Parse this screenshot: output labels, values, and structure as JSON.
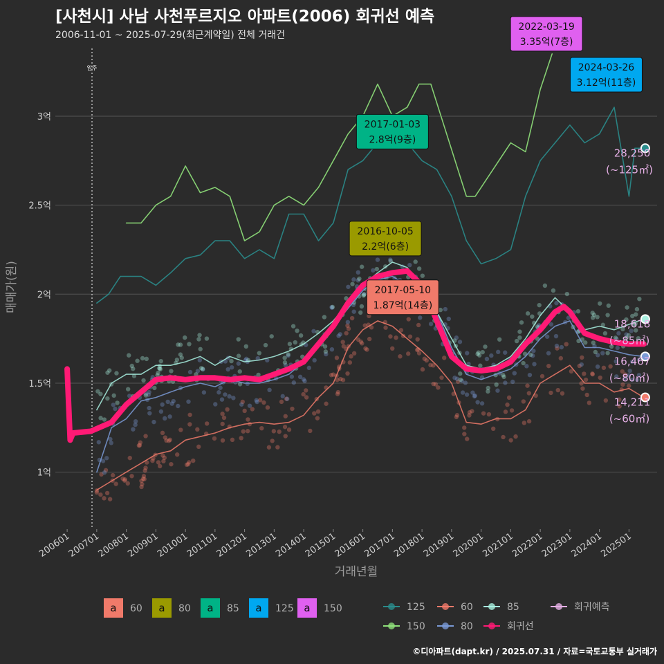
{
  "title": "[사천시] 사남 사천푸르지오 아파트(2006) 회귀선 예측",
  "subtitle": "2006-11-01 ~ 2025-07-29(최근계약일) 전체 거래건",
  "caption": "©디아파트(dapt.kr) / 2025.07.31 / 자료=국토교통부 실거래가",
  "chart_data": {
    "type": "line",
    "xlabel": "거래년월",
    "ylabel": "매매가(원)",
    "x_ticks": [
      "200601",
      "200701",
      "200801",
      "200901",
      "201001",
      "201101",
      "201201",
      "201301",
      "201401",
      "201501",
      "201601",
      "201701",
      "201801",
      "201901",
      "202001",
      "202101",
      "202201",
      "202301",
      "202401",
      "202501"
    ],
    "y_ticks": [
      {
        "value": 1.0,
        "label": "1억"
      },
      {
        "value": 1.5,
        "label": "1.5억"
      },
      {
        "value": 2.0,
        "label": "2억"
      },
      {
        "value": 2.5,
        "label": "2.5억"
      },
      {
        "value": 3.0,
        "label": "3억"
      }
    ],
    "ylim": [
      0.68,
      3.4
    ],
    "xlim": [
      2005.6,
      2025.95
    ],
    "vline": {
      "x": 2006.84,
      "label": "입주"
    },
    "series": [
      {
        "name": "125",
        "color": "#2a8c8c",
        "values": [
          [
            2007.0,
            1.95
          ],
          [
            2007.4,
            2.0
          ],
          [
            2007.8,
            2.1
          ],
          [
            2008.5,
            2.1
          ],
          [
            2009.0,
            2.05
          ],
          [
            2009.5,
            2.12
          ],
          [
            2010.0,
            2.2
          ],
          [
            2010.5,
            2.22
          ],
          [
            2011.0,
            2.3
          ],
          [
            2011.5,
            2.3
          ],
          [
            2012.0,
            2.2
          ],
          [
            2012.5,
            2.25
          ],
          [
            2013.0,
            2.2
          ],
          [
            2013.5,
            2.45
          ],
          [
            2014.0,
            2.45
          ],
          [
            2014.5,
            2.3
          ],
          [
            2015.0,
            2.4
          ],
          [
            2015.5,
            2.7
          ],
          [
            2016.0,
            2.75
          ],
          [
            2016.5,
            2.85
          ],
          [
            2017.0,
            2.95
          ],
          [
            2017.5,
            2.85
          ],
          [
            2018.0,
            2.75
          ],
          [
            2018.5,
            2.7
          ],
          [
            2019.0,
            2.55
          ],
          [
            2019.5,
            2.3
          ],
          [
            2020.0,
            2.17
          ],
          [
            2020.5,
            2.2
          ],
          [
            2021.0,
            2.25
          ],
          [
            2021.5,
            2.55
          ],
          [
            2022.0,
            2.75
          ],
          [
            2022.5,
            2.85
          ],
          [
            2023.0,
            2.95
          ],
          [
            2023.5,
            2.85
          ],
          [
            2024.0,
            2.9
          ],
          [
            2024.5,
            3.05
          ],
          [
            2025.0,
            2.55
          ],
          [
            2025.2,
            2.82
          ],
          [
            2025.5,
            2.82
          ]
        ]
      },
      {
        "name": "150",
        "color": "#8fe07a",
        "values": [
          [
            2008.0,
            2.4
          ],
          [
            2008.5,
            2.4
          ],
          [
            2009.0,
            2.5
          ],
          [
            2009.5,
            2.55
          ],
          [
            2010.0,
            2.72
          ],
          [
            2010.5,
            2.57
          ],
          [
            2011.0,
            2.6
          ],
          [
            2011.5,
            2.55
          ],
          [
            2012.0,
            2.3
          ],
          [
            2012.5,
            2.35
          ],
          [
            2013.0,
            2.5
          ],
          [
            2013.5,
            2.55
          ],
          [
            2014.0,
            2.5
          ],
          [
            2014.5,
            2.6
          ],
          [
            2015.0,
            2.75
          ],
          [
            2015.5,
            2.9
          ],
          [
            2016.0,
            3.0
          ],
          [
            2016.5,
            3.18
          ],
          [
            2017.0,
            3.0
          ],
          [
            2017.5,
            3.05
          ],
          [
            2017.9,
            3.18
          ],
          [
            2018.3,
            3.18
          ],
          [
            2019.5,
            2.55
          ],
          [
            2019.8,
            2.55
          ],
          [
            2021.0,
            2.85
          ],
          [
            2021.5,
            2.8
          ],
          [
            2022.0,
            3.15
          ],
          [
            2022.4,
            3.35
          ]
        ]
      },
      {
        "name": "60",
        "color": "#f07a6a",
        "values": [
          [
            2007.0,
            0.9
          ],
          [
            2007.5,
            0.95
          ],
          [
            2008.0,
            1.0
          ],
          [
            2008.5,
            1.05
          ],
          [
            2009.0,
            1.1
          ],
          [
            2009.5,
            1.12
          ],
          [
            2010.0,
            1.18
          ],
          [
            2010.5,
            1.2
          ],
          [
            2011.0,
            1.22
          ],
          [
            2011.5,
            1.25
          ],
          [
            2012.0,
            1.27
          ],
          [
            2012.5,
            1.28
          ],
          [
            2013.0,
            1.27
          ],
          [
            2013.5,
            1.28
          ],
          [
            2014.0,
            1.32
          ],
          [
            2014.5,
            1.42
          ],
          [
            2015.0,
            1.5
          ],
          [
            2015.5,
            1.7
          ],
          [
            2016.0,
            1.8
          ],
          [
            2016.5,
            1.85
          ],
          [
            2017.0,
            1.82
          ],
          [
            2017.5,
            1.75
          ],
          [
            2018.0,
            1.68
          ],
          [
            2018.5,
            1.6
          ],
          [
            2019.0,
            1.5
          ],
          [
            2019.5,
            1.28
          ],
          [
            2020.0,
            1.27
          ],
          [
            2020.5,
            1.3
          ],
          [
            2021.0,
            1.3
          ],
          [
            2021.5,
            1.35
          ],
          [
            2022.0,
            1.5
          ],
          [
            2022.5,
            1.55
          ],
          [
            2023.0,
            1.6
          ],
          [
            2023.5,
            1.5
          ],
          [
            2024.0,
            1.5
          ],
          [
            2024.5,
            1.45
          ],
          [
            2025.0,
            1.47
          ],
          [
            2025.5,
            1.42
          ]
        ]
      },
      {
        "name": "80",
        "color": "#7a9ad6",
        "values": [
          [
            2007.0,
            1.0
          ],
          [
            2007.5,
            1.25
          ],
          [
            2008.0,
            1.3
          ],
          [
            2008.5,
            1.4
          ],
          [
            2009.0,
            1.42
          ],
          [
            2009.5,
            1.45
          ],
          [
            2010.0,
            1.48
          ],
          [
            2010.5,
            1.5
          ],
          [
            2011.0,
            1.48
          ],
          [
            2011.5,
            1.52
          ],
          [
            2012.0,
            1.5
          ],
          [
            2012.5,
            1.5
          ],
          [
            2013.0,
            1.52
          ],
          [
            2013.5,
            1.55
          ],
          [
            2014.0,
            1.62
          ],
          [
            2014.5,
            1.72
          ],
          [
            2015.0,
            1.82
          ],
          [
            2015.5,
            1.92
          ],
          [
            2016.0,
            2.02
          ],
          [
            2016.5,
            2.08
          ],
          [
            2017.0,
            2.1
          ],
          [
            2017.5,
            2.05
          ],
          [
            2018.0,
            2.0
          ],
          [
            2018.5,
            1.9
          ],
          [
            2019.0,
            1.7
          ],
          [
            2019.5,
            1.55
          ],
          [
            2020.0,
            1.52
          ],
          [
            2020.5,
            1.55
          ],
          [
            2021.0,
            1.58
          ],
          [
            2021.5,
            1.65
          ],
          [
            2022.0,
            1.75
          ],
          [
            2022.5,
            1.82
          ],
          [
            2023.0,
            1.85
          ],
          [
            2023.5,
            1.7
          ],
          [
            2024.0,
            1.7
          ],
          [
            2024.5,
            1.68
          ],
          [
            2025.0,
            1.66
          ],
          [
            2025.5,
            1.65
          ]
        ]
      },
      {
        "name": "85",
        "color": "#a8f0e0",
        "values": [
          [
            2007.0,
            1.35
          ],
          [
            2007.5,
            1.5
          ],
          [
            2008.0,
            1.55
          ],
          [
            2008.5,
            1.55
          ],
          [
            2009.0,
            1.6
          ],
          [
            2009.5,
            1.6
          ],
          [
            2010.0,
            1.62
          ],
          [
            2010.5,
            1.65
          ],
          [
            2011.0,
            1.6
          ],
          [
            2011.5,
            1.65
          ],
          [
            2012.0,
            1.62
          ],
          [
            2012.5,
            1.63
          ],
          [
            2013.0,
            1.65
          ],
          [
            2013.5,
            1.68
          ],
          [
            2014.0,
            1.72
          ],
          [
            2014.5,
            1.78
          ],
          [
            2015.0,
            1.85
          ],
          [
            2015.5,
            1.95
          ],
          [
            2016.0,
            2.05
          ],
          [
            2016.5,
            2.12
          ],
          [
            2017.0,
            2.18
          ],
          [
            2017.5,
            2.15
          ],
          [
            2018.0,
            2.05
          ],
          [
            2018.5,
            1.9
          ],
          [
            2019.0,
            1.75
          ],
          [
            2019.5,
            1.6
          ],
          [
            2020.0,
            1.58
          ],
          [
            2020.5,
            1.6
          ],
          [
            2021.0,
            1.65
          ],
          [
            2021.5,
            1.75
          ],
          [
            2022.0,
            1.88
          ],
          [
            2022.5,
            1.98
          ],
          [
            2023.0,
            1.9
          ],
          [
            2023.5,
            1.8
          ],
          [
            2024.0,
            1.82
          ],
          [
            2024.5,
            1.8
          ],
          [
            2025.0,
            1.83
          ],
          [
            2025.5,
            1.86
          ]
        ]
      },
      {
        "name": "회귀선",
        "color": "#ff1a75",
        "values": [
          [
            2006.0,
            1.58
          ],
          [
            2006.1,
            1.18
          ],
          [
            2006.2,
            1.22
          ],
          [
            2006.8,
            1.23
          ],
          [
            2007.5,
            1.28
          ],
          [
            2008.0,
            1.38
          ],
          [
            2008.5,
            1.45
          ],
          [
            2009.0,
            1.52
          ],
          [
            2009.5,
            1.53
          ],
          [
            2010.0,
            1.52
          ],
          [
            2010.5,
            1.53
          ],
          [
            2011.0,
            1.53
          ],
          [
            2011.5,
            1.52
          ],
          [
            2012.0,
            1.53
          ],
          [
            2012.5,
            1.52
          ],
          [
            2013.0,
            1.55
          ],
          [
            2013.5,
            1.58
          ],
          [
            2014.0,
            1.62
          ],
          [
            2014.5,
            1.72
          ],
          [
            2015.0,
            1.82
          ],
          [
            2015.5,
            1.95
          ],
          [
            2016.0,
            2.05
          ],
          [
            2016.5,
            2.1
          ],
          [
            2017.0,
            2.12
          ],
          [
            2017.5,
            2.13
          ],
          [
            2018.0,
            2.05
          ],
          [
            2018.5,
            1.85
          ],
          [
            2019.0,
            1.65
          ],
          [
            2019.5,
            1.58
          ],
          [
            2020.0,
            1.57
          ],
          [
            2020.5,
            1.58
          ],
          [
            2021.0,
            1.62
          ],
          [
            2021.5,
            1.72
          ],
          [
            2022.0,
            1.8
          ],
          [
            2022.5,
            1.9
          ],
          [
            2022.8,
            1.93
          ],
          [
            2023.0,
            1.9
          ],
          [
            2023.5,
            1.78
          ],
          [
            2024.0,
            1.75
          ],
          [
            2024.5,
            1.73
          ],
          [
            2025.0,
            1.72
          ],
          [
            2025.5,
            1.72
          ]
        ]
      }
    ],
    "legend_fill": [
      {
        "label": "60",
        "color": "#f07a6a"
      },
      {
        "label": "80",
        "color": "#9a9a00"
      },
      {
        "label": "85",
        "color": "#00b386"
      },
      {
        "label": "125",
        "color": "#00a8f0"
      },
      {
        "label": "150",
        "color": "#e060f0"
      }
    ],
    "legend_line": [
      {
        "label": "125",
        "color": "#2a8c8c"
      },
      {
        "label": "60",
        "color": "#f07a6a"
      },
      {
        "label": "85",
        "color": "#a8f0e0"
      },
      {
        "label": "회귀예측",
        "color": "#e6b0e6"
      },
      {
        "label": "150",
        "color": "#8fe07a"
      },
      {
        "label": "80",
        "color": "#7a9ad6"
      },
      {
        "label": "회귀선",
        "color": "#ff1a75"
      }
    ],
    "annotations": [
      {
        "date": "2022-03-19",
        "price": "3.35억(7층)",
        "x": 2022.21,
        "y": 3.35,
        "color": "#e060f0"
      },
      {
        "date": "2024-03-26",
        "price": "3.12억(11층)",
        "x": 2024.23,
        "y": 3.12,
        "color": "#00a8f0"
      },
      {
        "date": "2017-01-03",
        "price": "2.8억(9층)",
        "x": 2017.0,
        "y": 2.8,
        "color": "#00b386"
      },
      {
        "date": "2016-10-05",
        "price": "2.2억(6층)",
        "x": 2016.76,
        "y": 2.2,
        "color": "#9a9a00"
      },
      {
        "date": "2017-05-10",
        "price": "1.87억(14층)",
        "x": 2017.35,
        "y": 1.87,
        "color": "#f07a6a"
      }
    ],
    "end_labels": [
      {
        "value": "28,250",
        "area": "(~125㎡)",
        "y": 2.82,
        "color": "#2a8c8c"
      },
      {
        "value": "18,618",
        "area": "(~85㎡)",
        "y": 1.86,
        "color": "#a8f0e0"
      },
      {
        "value": "16,467",
        "area": "(~80㎡)",
        "y": 1.65,
        "color": "#7a9ad6"
      },
      {
        "value": "14,211",
        "area": "(~60㎡)",
        "y": 1.42,
        "color": "#f07a6a"
      }
    ]
  }
}
